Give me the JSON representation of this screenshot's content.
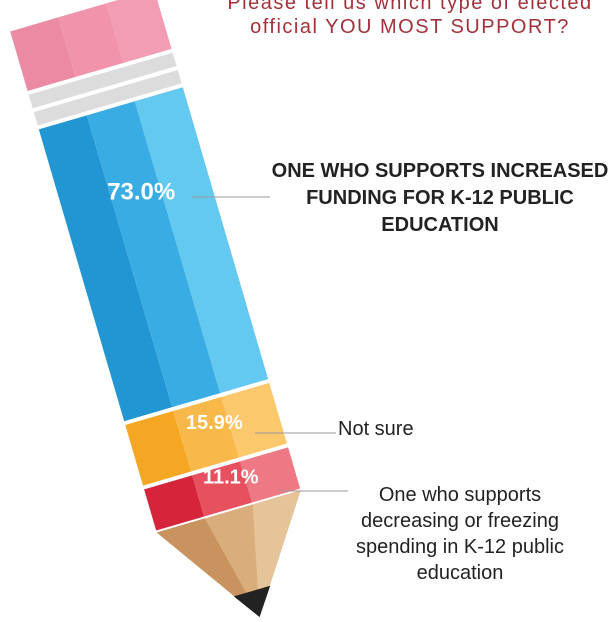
{
  "chart_data": {
    "type": "pencil",
    "title": "Please tell us which type of elected official YOU MOST SUPPORT?",
    "categories": [
      "ONE WHO SUPPORTS INCREASED FUNDING FOR K-12 PUBLIC EDUCATION",
      "Not sure",
      "One who supports decreasing or freezing spending in K-12 public education"
    ],
    "values": [
      73.0,
      15.9,
      11.1
    ],
    "value_labels": [
      "73.0%",
      "15.9%",
      "11.1%"
    ],
    "colors": [
      [
        "#2196d3",
        "#39ade3",
        "#63c9f0"
      ],
      [
        "#f5a623",
        "#f8b84a",
        "#fbc86c"
      ],
      [
        "#d6243b",
        "#e6505f",
        "#ee7883"
      ]
    ]
  }
}
